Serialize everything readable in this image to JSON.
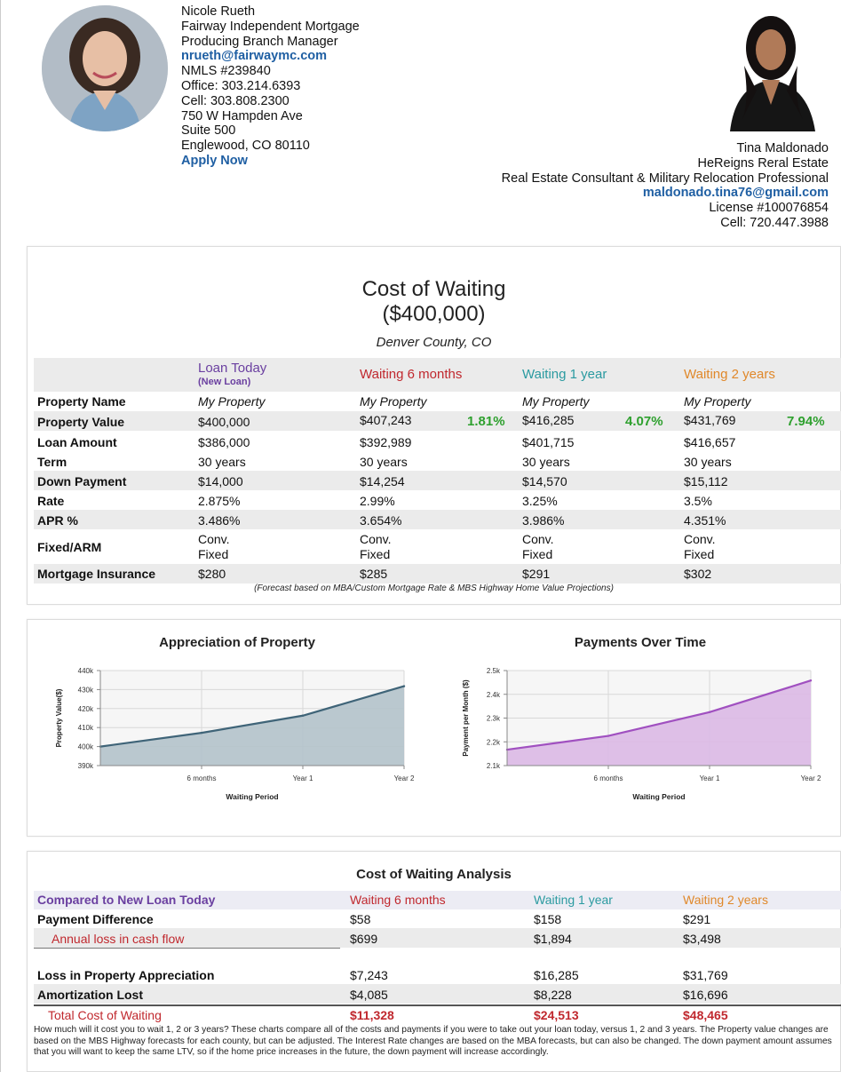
{
  "agent1": {
    "name": "Nicole Rueth",
    "company": "Fairway Independent Mortgage",
    "title": "Producing Branch Manager",
    "email": "nrueth@fairwaymc.com",
    "nmls": "NMLS #239840",
    "office": "Office: 303.214.6393",
    "cell": "Cell: 303.808.2300",
    "address1": "750 W Hampden Ave",
    "address2": "Suite 500",
    "address3": "Englewood,  CO  80110",
    "apply_label": "Apply Now"
  },
  "agent2": {
    "name": "Tina Maldonado",
    "company": "HeReigns Reral Estate",
    "title": "Real Estate Consultant & Military Relocation Professional",
    "email": "maldonado.tina76@gmail.com",
    "license": "License #100076854",
    "cell": "Cell: 720.447.3988"
  },
  "cost_table": {
    "title_line1": "Cost of Waiting",
    "title_line2": "($400,000)",
    "subtitle": "Denver County, CO",
    "columns": [
      {
        "heading": "Loan Today",
        "subheading": "(New Loan)",
        "color": "#6a3fa0"
      },
      {
        "heading": "Waiting 6 months",
        "subheading": "",
        "color": "#c0282e"
      },
      {
        "heading": "Waiting 1 year",
        "subheading": "",
        "color": "#2a9aa0"
      },
      {
        "heading": "Waiting 2 years",
        "subheading": "",
        "color": "#e0882a"
      }
    ],
    "row_labels": {
      "property_name": "Property Name",
      "property_value": "Property Value",
      "loan_amount": "Loan Amount",
      "term": "Term",
      "down_payment": "Down Payment",
      "rate": "Rate",
      "apr": "APR %",
      "fixed_arm": "Fixed/ARM",
      "mortgage_insurance": "Mortgage Insurance"
    },
    "values": [
      {
        "property_name": "My Property",
        "property_value": "$400,000",
        "pct": "",
        "loan_amount": "$386,000",
        "term": "30 years",
        "down_payment": "$14,000",
        "rate": "2.875%",
        "apr": "3.486%",
        "type1": "Conv.",
        "type2": "Fixed",
        "mortgage_insurance": "$280"
      },
      {
        "property_name": "My Property",
        "property_value": "$407,243",
        "pct": "1.81%",
        "loan_amount": "$392,989",
        "term": "30 years",
        "down_payment": "$14,254",
        "rate": "2.99%",
        "apr": "3.654%",
        "type1": "Conv.",
        "type2": "Fixed",
        "mortgage_insurance": "$285"
      },
      {
        "property_name": "My Property",
        "property_value": "$416,285",
        "pct": "4.07%",
        "loan_amount": "$401,715",
        "term": "30 years",
        "down_payment": "$14,570",
        "rate": "3.25%",
        "apr": "3.986%",
        "type1": "Conv.",
        "type2": "Fixed",
        "mortgage_insurance": "$291"
      },
      {
        "property_name": "My Property",
        "property_value": "$431,769",
        "pct": "7.94%",
        "loan_amount": "$416,657",
        "term": "30 years",
        "down_payment": "$15,112",
        "rate": "3.5%",
        "apr": "4.351%",
        "type1": "Conv.",
        "type2": "Fixed",
        "mortgage_insurance": "$302"
      }
    ],
    "forecast_note": "(Forecast based on MBA/Custom Mortgage Rate & MBS Highway Home Value Projections)"
  },
  "chart_data": [
    {
      "type": "area",
      "title": "Appreciation of Property",
      "xlabel": "Waiting Period",
      "ylabel": "Property Value($)",
      "x": [
        "Today",
        "6 months",
        "Year 1",
        "Year 2"
      ],
      "x_tick_labels": [
        "6 months",
        "Year 1",
        "Year 2"
      ],
      "y_tick_labels": [
        "390k",
        "400k",
        "410k",
        "420k",
        "430k",
        "440k"
      ],
      "ylim": [
        390000,
        440000
      ],
      "values": [
        400000,
        407243,
        416285,
        431769
      ],
      "fill_color": "#b4c3cb",
      "line_color": "#3f6478",
      "grid": true
    },
    {
      "type": "area",
      "title": "Payments Over Time",
      "xlabel": "Waiting Period",
      "ylabel": "Payment per Month ($)",
      "x": [
        "Today",
        "6 months",
        "Year 1",
        "Year 2"
      ],
      "x_tick_labels": [
        "6 months",
        "Year 1",
        "Year 2"
      ],
      "y_tick_labels": [
        "2.1k",
        "2.2k",
        "2.3k",
        "2.4k",
        "2.5k"
      ],
      "ylim": [
        2100,
        2500
      ],
      "values": [
        2167,
        2225,
        2325,
        2458
      ],
      "fill_color": "#dcb9e6",
      "line_color": "#a050c0",
      "grid": true
    }
  ],
  "analysis": {
    "title": "Cost of Waiting Analysis",
    "compare_label": "Compared to New Loan Today",
    "columns": [
      "Waiting 6 months",
      "Waiting 1 year",
      "Waiting 2 years"
    ],
    "payment_difference_label": "Payment Difference",
    "payment_difference": [
      "$58",
      "$158",
      "$291"
    ],
    "annual_loss_label": "Annual loss in cash flow",
    "annual_loss": [
      "$699",
      "$1,894",
      "$3,498"
    ],
    "loss_appreciation_label": "Loss in Property Appreciation",
    "loss_appreciation": [
      "$7,243",
      "$16,285",
      "$31,769"
    ],
    "amortization_label": "Amortization Lost",
    "amortization": [
      "$4,085",
      "$8,228",
      "$16,696"
    ],
    "total_label": "Total Cost of Waiting",
    "total": [
      "$11,328",
      "$24,513",
      "$48,465"
    ],
    "paragraph": "How much will it cost you to wait 1, 2 or 3 years? These charts compare all of the costs and payments if you were to take out your loan today, versus 1, 2 and 3 years. The Property value changes are based on the MBS Highway forecasts for each county, but can be adjusted. The Interest Rate changes are based on the MBA forecasts, but can also be changed. The down payment amount assumes that you will want to keep the same LTV, so if the home price increases in the future, the down payment will increase accordingly."
  }
}
